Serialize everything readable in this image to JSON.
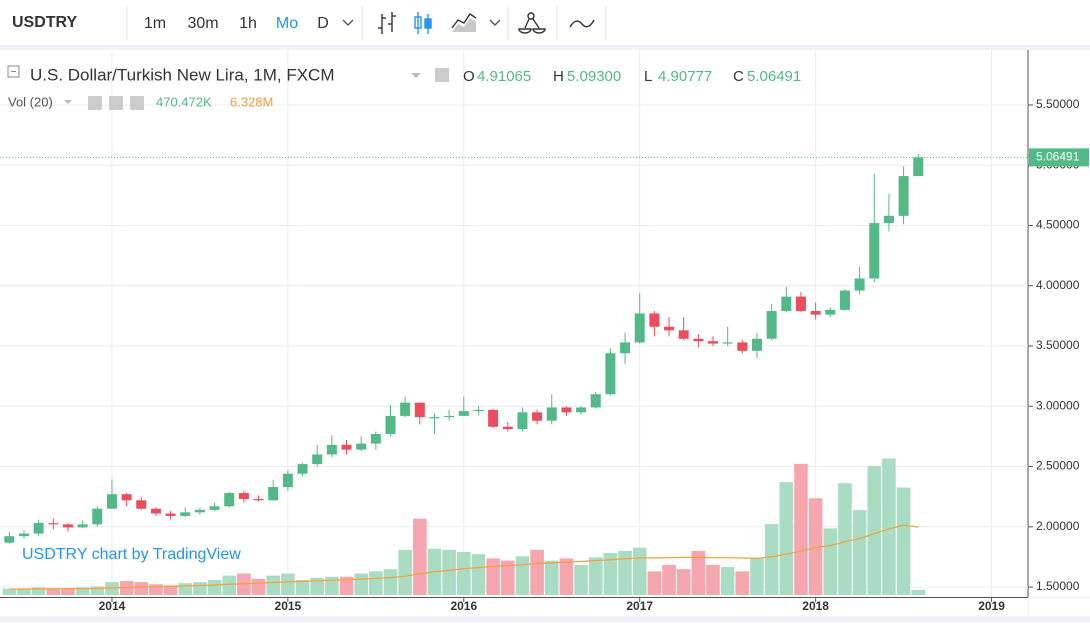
{
  "toolbar": {
    "symbol": "USDTRY",
    "intervals": [
      "1m",
      "30m",
      "1h",
      "Mo",
      "D"
    ],
    "active": 3
  },
  "chart_data": {
    "type": "candlestick",
    "title": "U.S. Dollar/Turkish New Lira, 1M, FXCM",
    "ohlc_letters": [
      "O",
      "H",
      "L",
      "C"
    ],
    "ohlc_labels": [
      "4.91065",
      "5.09300",
      "4.90777",
      "5.06491"
    ],
    "watermark": "USDTRY chart by TradingView",
    "volume_legend": {
      "name": "Vol (20)",
      "volume": "470.472K",
      "ma": "6.328M"
    },
    "up_color": "#53b987",
    "down_color": "#eb4d5c",
    "up_volume_color": "#a9dcc3",
    "down_volume_color": "#f5a6ae",
    "ma_color": "#f5a03c",
    "categories": [
      null,
      null,
      null,
      null,
      null,
      null,
      null,
      "2014",
      null,
      null,
      null,
      null,
      null,
      null,
      null,
      null,
      null,
      null,
      null,
      "2015",
      null,
      null,
      null,
      null,
      null,
      null,
      null,
      null,
      null,
      null,
      null,
      "2016",
      null,
      null,
      null,
      null,
      null,
      null,
      null,
      null,
      null,
      null,
      null,
      "2017",
      null,
      null,
      null,
      null,
      null,
      null,
      null,
      null,
      null,
      null,
      null,
      "2018",
      null,
      null,
      null,
      null,
      null,
      null,
      null,
      null,
      null,
      null,
      null,
      "2019"
    ],
    "open": [
      1.868,
      1.922,
      1.944,
      2.03,
      2.02,
      1.995,
      2.02,
      2.15,
      2.27,
      2.22,
      2.15,
      2.11,
      2.09,
      2.12,
      2.14,
      2.17,
      2.28,
      2.23,
      2.22,
      2.33,
      2.44,
      2.52,
      2.6,
      2.68,
      2.64,
      2.69,
      2.77,
      2.92,
      3.03,
      2.9,
      2.91,
      2.92,
      2.96,
      2.97,
      2.83,
      2.81,
      2.95,
      2.88,
      2.99,
      2.95,
      2.99,
      3.1,
      3.44,
      3.53,
      3.77,
      3.66,
      3.63,
      3.56,
      3.54,
      3.52,
      3.53,
      3.46,
      3.56,
      3.79,
      3.91,
      3.79,
      3.76,
      3.8,
      3.96,
      4.06,
      4.52,
      4.58,
      4.91065,
      null,
      null,
      null,
      null,
      null
    ],
    "high": [
      1.958,
      1.967,
      2.058,
      2.07,
      2.03,
      2.055,
      2.17,
      2.392,
      2.28,
      2.25,
      2.16,
      2.13,
      2.16,
      2.16,
      2.2,
      2.29,
      2.3,
      2.26,
      2.39,
      2.47,
      2.53,
      2.68,
      2.76,
      2.72,
      2.75,
      2.79,
      3.01,
      3.08,
      3.03,
      2.94,
      2.97,
      3.08,
      3.0,
      2.98,
      2.87,
      2.99,
      2.97,
      3.1,
      3.0,
      3.0,
      3.12,
      3.48,
      3.61,
      3.94,
      3.79,
      3.74,
      3.74,
      3.6,
      3.58,
      3.66,
      3.55,
      3.61,
      3.85,
      3.99,
      3.95,
      3.86,
      3.82,
      3.97,
      4.16,
      4.93,
      4.76,
      4.99,
      5.093,
      null,
      null,
      null,
      null,
      null
    ],
    "low": [
      1.86,
      1.9,
      1.924,
      1.98,
      1.96,
      1.99,
      2.0,
      2.15,
      2.17,
      2.14,
      2.09,
      2.06,
      2.08,
      2.1,
      2.13,
      2.16,
      2.2,
      2.21,
      2.22,
      2.3,
      2.42,
      2.5,
      2.58,
      2.6,
      2.63,
      2.64,
      2.75,
      2.91,
      2.85,
      2.77,
      2.88,
      2.92,
      2.93,
      2.82,
      2.79,
      2.79,
      2.85,
      2.85,
      2.92,
      2.93,
      2.98,
      3.09,
      3.35,
      3.52,
      3.58,
      3.58,
      3.55,
      3.49,
      3.5,
      3.5,
      3.44,
      3.4,
      3.55,
      3.78,
      3.78,
      3.72,
      3.74,
      3.79,
      3.93,
      4.03,
      4.45,
      4.51,
      4.90777,
      null,
      null,
      null,
      null,
      null
    ],
    "close": [
      1.922,
      1.944,
      2.032,
      2.02,
      1.995,
      2.02,
      2.15,
      2.27,
      2.22,
      2.15,
      2.11,
      2.09,
      2.12,
      2.14,
      2.17,
      2.28,
      2.23,
      2.22,
      2.33,
      2.44,
      2.52,
      2.6,
      2.68,
      2.64,
      2.69,
      2.77,
      2.92,
      3.03,
      2.91,
      2.91,
      2.92,
      2.96,
      2.97,
      2.83,
      2.81,
      2.95,
      2.88,
      2.99,
      2.95,
      2.99,
      3.1,
      3.44,
      3.53,
      3.77,
      3.66,
      3.63,
      3.56,
      3.54,
      3.52,
      3.53,
      3.46,
      3.56,
      3.79,
      3.91,
      3.79,
      3.76,
      3.8,
      3.96,
      4.06,
      4.52,
      4.58,
      4.91,
      5.06491,
      null,
      null,
      null,
      null,
      null
    ],
    "volume": [
      600000,
      600000,
      700000,
      600000,
      600000,
      700000,
      800000,
      1200000,
      1300000,
      1200000,
      1000000,
      900000,
      1100000,
      1200000,
      1400000,
      1800000,
      2000000,
      1500000,
      1800000,
      2000000,
      1400000,
      1600000,
      1700000,
      1700000,
      2000000,
      2200000,
      2400000,
      4200000,
      7100000,
      4300000,
      4200000,
      4000000,
      3800000,
      3400000,
      3200000,
      3600000,
      4200000,
      3200000,
      3400000,
      2800000,
      3500000,
      3900000,
      4100000,
      4400000,
      2200000,
      2800000,
      2400000,
      4100000,
      2800000,
      2600000,
      2200000,
      3400000,
      6600000,
      10500000,
      12200000,
      9000000,
      6200000,
      10400000,
      7900000,
      12000000,
      12700000,
      10000000,
      470472,
      null,
      null,
      null,
      null,
      null
    ],
    "volume_ma": [
      550000,
      560000,
      570000,
      580000,
      590000,
      600000,
      620000,
      660000,
      700000,
      740000,
      770000,
      800000,
      840000,
      880000,
      930000,
      990000,
      1050000,
      1100000,
      1160000,
      1220000,
      1270000,
      1320000,
      1370000,
      1420000,
      1480000,
      1550000,
      1620000,
      1750000,
      1980000,
      2150000,
      2300000,
      2440000,
      2560000,
      2650000,
      2730000,
      2820000,
      2930000,
      2990000,
      3060000,
      3120000,
      3200000,
      3280000,
      3370000,
      3460000,
      3450000,
      3480000,
      3500000,
      3500000,
      3480000,
      3470000,
      3440000,
      3420000,
      3550000,
      3800000,
      4100000,
      4400000,
      4600000,
      4950000,
      5250000,
      5700000,
      6150000,
      6500000,
      6328000,
      null,
      null,
      null,
      null,
      null
    ],
    "ylim": [
      1.434,
      5.956
    ],
    "y2lim": [
      0,
      50700000
    ],
    "yticks": [
      {
        "value": 1.5,
        "label": "1.50000"
      },
      {
        "value": 2,
        "label": "2.00000"
      },
      {
        "value": 2.5,
        "label": "2.50000"
      },
      {
        "value": 3,
        "label": "3.00000"
      },
      {
        "value": 3.5,
        "label": "3.50000"
      },
      {
        "value": 4,
        "label": "4.00000"
      },
      {
        "value": 4.5,
        "label": "4.50000"
      },
      {
        "value": 5,
        "label": "5.00000"
      },
      {
        "value": 5.5,
        "label": "5.50000"
      }
    ],
    "grid": true
  }
}
